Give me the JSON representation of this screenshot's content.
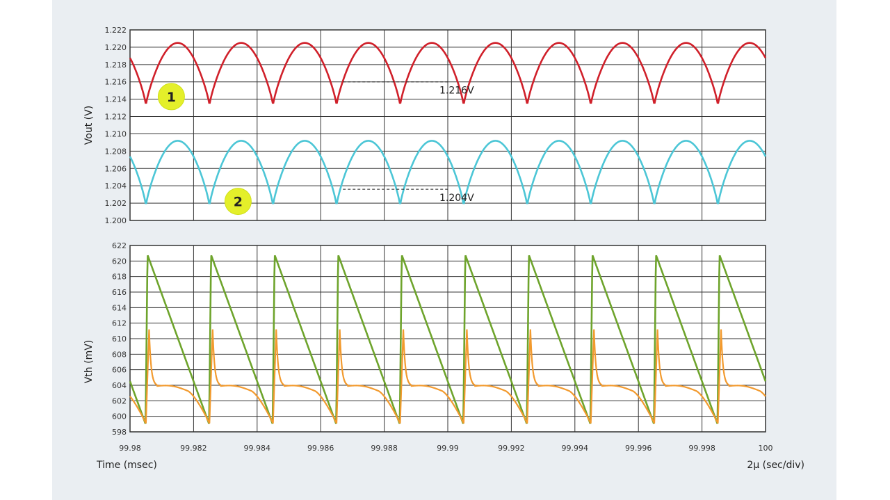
{
  "chart_data": [
    {
      "type": "line",
      "ylabel": "Vout (V)",
      "ylim": [
        1.2,
        1.222
      ],
      "yticks": [
        "1.222",
        "1.220",
        "1.218",
        "1.216",
        "1.214",
        "1.212",
        "1.210",
        "1.208",
        "1.206",
        "1.204",
        "1.202",
        "1.200"
      ],
      "xlim": [
        99.98,
        100
      ],
      "grid": true,
      "series": [
        {
          "name": "1",
          "color": "#d0202a",
          "min": 1.2133,
          "max": 1.2205,
          "period_msec": 0.002,
          "phase_first_min_msec": 99.9805
        },
        {
          "name": "2",
          "color": "#4cc6d6",
          "min": 1.2017,
          "max": 1.2092,
          "period_msec": 0.002,
          "phase_first_min_msec": 99.9805
        }
      ],
      "annotations": [
        {
          "text": "1.216V",
          "y": 1.216,
          "x_start": 99.9867,
          "x_end": 99.99
        },
        {
          "text": "1.204V",
          "y": 1.2036,
          "x_start": 99.9867,
          "x_end": 99.99
        }
      ],
      "markers": [
        {
          "label": "1",
          "x": 99.9813,
          "y": 1.2143
        },
        {
          "label": "2",
          "x": 99.9834,
          "y": 1.2022
        }
      ]
    },
    {
      "type": "line",
      "ylabel": "Vth (mV)",
      "ylim": [
        598,
        622
      ],
      "yticks": [
        "622",
        "620",
        "618",
        "616",
        "614",
        "612",
        "610",
        "608",
        "606",
        "604",
        "602",
        "600",
        "598"
      ],
      "xlim": [
        99.98,
        100
      ],
      "xticks": [
        "99.98",
        "99.982",
        "99.984",
        "99.986",
        "99.988",
        "99.99",
        "99.992",
        "99.994",
        "99.996",
        "99.998",
        "100"
      ],
      "xlabel": "Time (msec)",
      "xscale_note": "2μ (sec/div)",
      "grid": true,
      "series": [
        {
          "color": "#6ea42c",
          "shape": "sawtooth",
          "min": 599.0,
          "max": 620.8,
          "period_msec": 0.002,
          "first_peak_msec": 99.98055
        },
        {
          "color": "#f29a2e",
          "shape": "spike",
          "base": 603.3,
          "min": 599.1,
          "max": 611.2,
          "period_msec": 0.002,
          "first_peak_msec": 99.9806
        }
      ]
    }
  ]
}
